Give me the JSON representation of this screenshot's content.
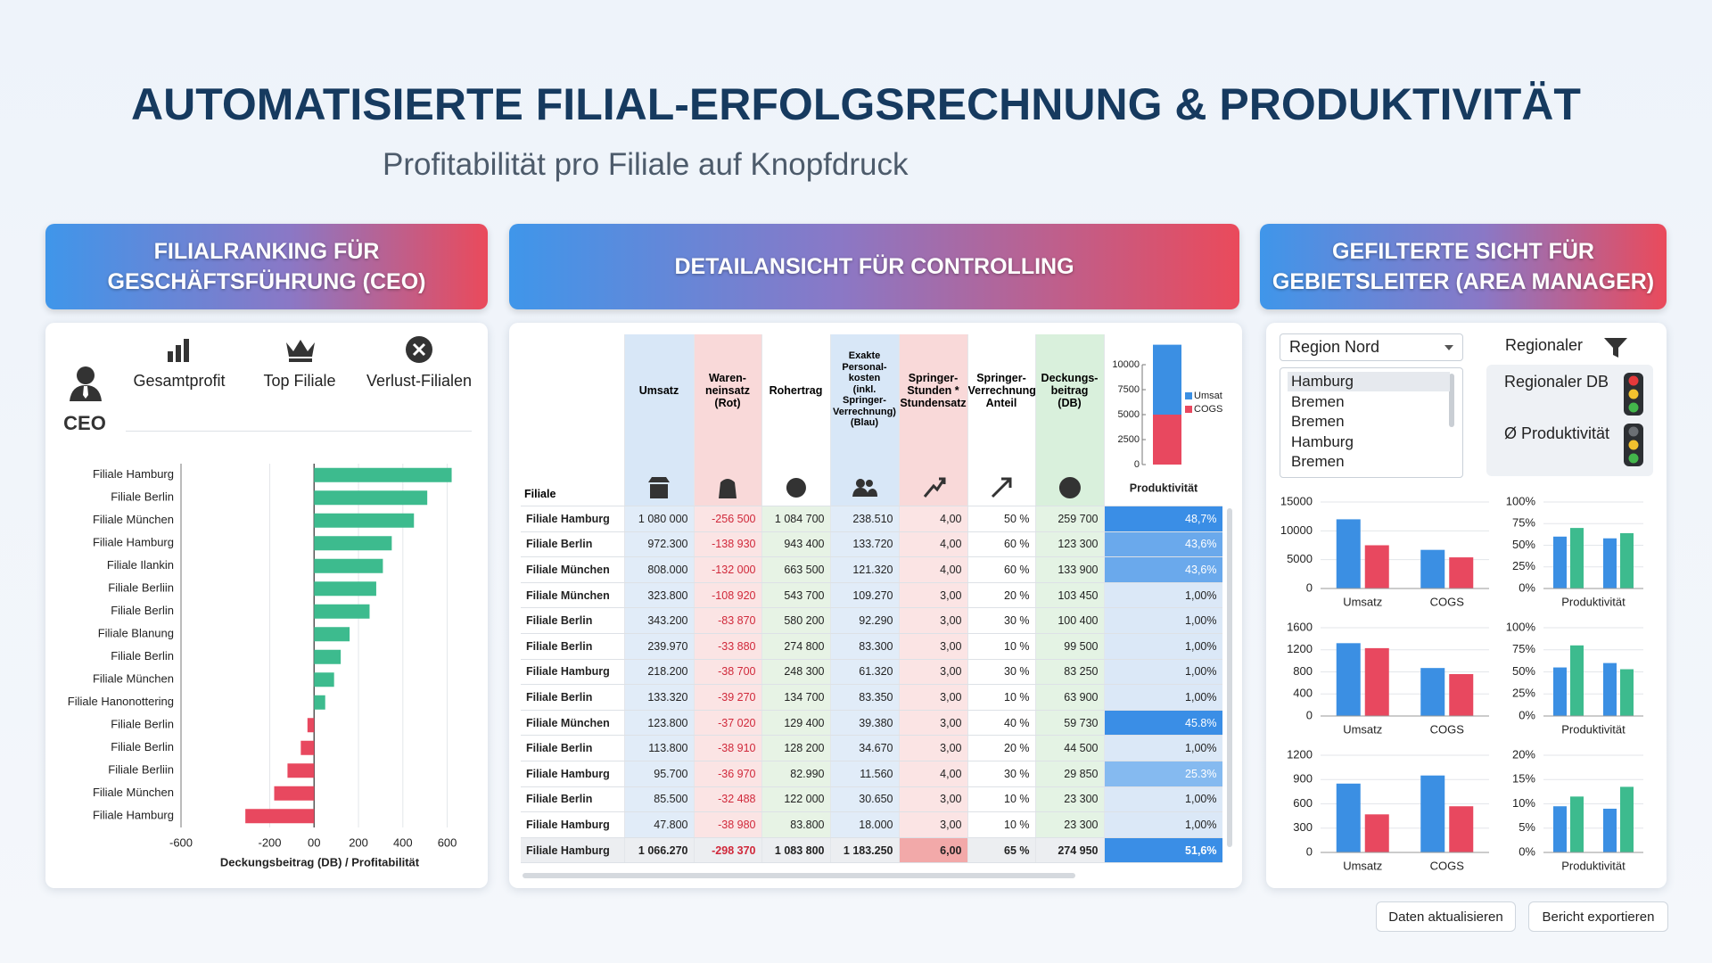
{
  "header": {
    "title": "AUTOMATISIERTE FILIAL-ERFOLGSRECHNUNG & PRODUKTIVITÄT",
    "subtitle": "Profitabilität pro Filiale auf Knopfdruck"
  },
  "panels": [
    {
      "title": "FILIALRANKING FÜR\nGESCHÄFTSFÜHRUNG (CEO)"
    },
    {
      "title": "DETAILANSICHT FÜR CONTROLLING"
    },
    {
      "title": "GEFILTERTE SICHT FÜR\nGEBIETSLEITER (AREA MANAGER)"
    }
  ],
  "ceo": {
    "role": "CEO",
    "tabs": [
      "Gesamtprofit",
      "Top Filiale",
      "Verlust-Filialen"
    ],
    "chart": {
      "type": "bar",
      "orientation": "horizontal",
      "categories": [
        "Filiale Hamburg",
        "Filiale Berlin",
        "Filiale München",
        "Filiale Hamburg",
        "Filiale Ilankin",
        "Filiale Berliin",
        "Filiale Berlin",
        "Filiale Blanung",
        "Filiale Berlin",
        "Filiale München",
        "Filiale Hanonottering",
        "Filiale Berlin",
        "Filiale Berlin",
        "Filiale Berliin",
        "Filiale München",
        "Filiale Hamburg"
      ],
      "values": [
        620,
        510,
        450,
        350,
        310,
        280,
        250,
        160,
        120,
        90,
        50,
        -30,
        -60,
        -120,
        -180,
        -310
      ],
      "colors": {
        "positive": "#3dbb8e",
        "negative": "#e8485f"
      },
      "xlim": [
        -600,
        650
      ],
      "xticks": [
        -600,
        -200,
        {
          "value": 0,
          "label": "00"
        },
        200,
        400,
        600
      ],
      "x_label": "Deckungsbeitrag (DB) / Profitabilität",
      "grid": true
    }
  },
  "controlling": {
    "table": {
      "columns": [
        "Filiale",
        "Umsatz",
        "Waren-\nneinsatz\n(Rot)",
        "Rohertrag",
        "Exakte\nPersonal-\nkosten\n(inkl. Springer-\nVerrechnung)\n(Blau)",
        "Springer-\nStunden *\nStundensatz",
        "Springer-\nVerrechnung\nAnteil",
        "Deckungs-\nbeitrag\n(DB)",
        "Produktivität"
      ],
      "rows": [
        [
          "Filiale Hamburg",
          "1 080 000",
          "-256 500",
          "1 084 700",
          "238.510",
          "4,00",
          "50 %",
          "259 700",
          "48,7%"
        ],
        [
          "Filiale Berlin",
          "972.300",
          "-138 930",
          "943 400",
          "133.720",
          "4,00",
          "60 %",
          "123 300",
          "43,6%"
        ],
        [
          "Filiale München",
          "808.000",
          "-132 000",
          "663 500",
          "121.320",
          "4,00",
          "60 %",
          "133 900",
          "43,6%"
        ],
        [
          "Filiale München",
          "323.800",
          "-108 920",
          "543 700",
          "109.270",
          "3,00",
          "20 %",
          "103 450",
          "1,00%"
        ],
        [
          "Filiale Berlin",
          "343.200",
          "-83 870",
          "580 200",
          "92.290",
          "3,00",
          "30 %",
          "100 400",
          "1,00%"
        ],
        [
          "Filiale Berlin",
          "239.970",
          "-33 880",
          "274 800",
          "83.300",
          "3,00",
          "10 %",
          "99 500",
          "1,00%"
        ],
        [
          "Filiale Hamburg",
          "218.200",
          "-38 700",
          "248 300",
          "61.320",
          "3,00",
          "30 %",
          "83 250",
          "1,00%"
        ],
        [
          "Filiale Berlin",
          "133.320",
          "-39 270",
          "134 700",
          "83.350",
          "3,00",
          "10 %",
          "63 900",
          "1,00%"
        ],
        [
          "Filiale München",
          "123.800",
          "-37 020",
          "129 400",
          "39.380",
          "3,00",
          "40 %",
          "59 730",
          "45.8%"
        ],
        [
          "Filiale Berlin",
          "113.800",
          "-38 910",
          "128 200",
          "34.670",
          "3,00",
          "20 %",
          "44 500",
          "1,00%"
        ],
        [
          "Filiale Hamburg",
          "95.700",
          "-36 970",
          "82.990",
          "11.560",
          "4,00",
          "30 %",
          "29 850",
          "25.3%"
        ],
        [
          "Filiale Berlin",
          "85.500",
          "-32 488",
          "122 000",
          "30.650",
          "3,00",
          "10 %",
          "23 300",
          "1,00%"
        ],
        [
          "Filiale Hamburg",
          "47.800",
          "-38 980",
          "83.800",
          "18.000",
          "3,00",
          "10 %",
          "23 300",
          "1,00%"
        ],
        [
          "Filiale Hamburg",
          "1 066.270",
          "-298 370",
          "1 083 800",
          "1 183.250",
          "6,00",
          "65 %",
          "274 950",
          "51,6%"
        ]
      ]
    },
    "chart": {
      "type": "stacked_bar",
      "series": [
        {
          "name": "Umsatz",
          "color": "#3b8fe3",
          "values": [
            7000
          ]
        },
        {
          "name": "COGS",
          "color": "#e8485f",
          "values": [
            5000
          ]
        }
      ],
      "ylim": [
        0,
        12000
      ],
      "yticks": [
        0,
        2500,
        5000,
        7500,
        10000
      ]
    }
  },
  "area": {
    "dropdown": "Region Nord",
    "filter_label": "Regionaler",
    "list": [
      "Hamburg",
      "Bremen",
      "Bremen",
      "Hamburg",
      "Bremen"
    ],
    "kpis": [
      "Regionaler DB",
      "Ø Produktivität"
    ],
    "charts": [
      {
        "type": "bar",
        "categories": [
          "Umsatz",
          "COGS"
        ],
        "series": [
          {
            "color": "#3b8fe3",
            "values": [
              12000,
              6700
            ]
          },
          {
            "color": "#e8485f",
            "values": [
              7500,
              5400
            ]
          }
        ],
        "ylim": [
          0,
          15000
        ],
        "yticks": [
          0,
          5000,
          10000,
          15000
        ]
      },
      {
        "type": "bar",
        "categories": [
          null,
          null
        ],
        "x_label": "Produktivität",
        "series": [
          {
            "color": "#3b8fe3",
            "values": [
              60,
              58
            ]
          },
          {
            "color": "#3dbb8e",
            "values": [
              70,
              64
            ]
          }
        ],
        "ylim": [
          0,
          100
        ],
        "yticks": [
          {
            "value": 0,
            "label": "0%"
          },
          {
            "value": 25,
            "label": "25%"
          },
          {
            "value": 50,
            "label": "50%"
          },
          {
            "value": 75,
            "label": "75%"
          },
          {
            "value": 100,
            "label": "100%"
          }
        ]
      },
      {
        "type": "bar",
        "categories": [
          "Umsatz",
          "COGS"
        ],
        "series": [
          {
            "color": "#3b8fe3",
            "values": [
              1320,
              870
            ]
          },
          {
            "color": "#e8485f",
            "values": [
              1230,
              760
            ]
          }
        ],
        "ylim": [
          0,
          1600
        ],
        "yticks": [
          0,
          400,
          800,
          1200,
          1600
        ]
      },
      {
        "type": "bar",
        "categories": [
          null,
          null
        ],
        "x_label": "Produktivität",
        "series": [
          {
            "color": "#3b8fe3",
            "values": [
              55,
              60
            ]
          },
          {
            "color": "#3dbb8e",
            "values": [
              80,
              53
            ]
          }
        ],
        "ylim": [
          0,
          100
        ],
        "yticks": [
          {
            "value": 0,
            "label": "0%"
          },
          {
            "value": 25,
            "label": "25%"
          },
          {
            "value": 50,
            "label": "50%"
          },
          {
            "value": 75,
            "label": "75%"
          },
          {
            "value": 100,
            "label": "100%"
          }
        ]
      },
      {
        "type": "bar",
        "categories": [
          "Umsatz",
          "COGS"
        ],
        "series": [
          {
            "color": "#3b8fe3",
            "values": [
              850,
              950
            ]
          },
          {
            "color": "#e8485f",
            "values": [
              470,
              570
            ]
          }
        ],
        "ylim": [
          0,
          1200
        ],
        "yticks": [
          0,
          300,
          600,
          900,
          1200
        ]
      },
      {
        "type": "bar",
        "categories": [
          null,
          null
        ],
        "x_label": "Produktivität",
        "series": [
          {
            "color": "#3b8fe3",
            "values": [
              9.5,
              9
            ]
          },
          {
            "color": "#3dbb8e",
            "values": [
              11.5,
              13.5
            ]
          }
        ],
        "ylim": [
          0,
          20
        ],
        "yticks": [
          {
            "value": 0,
            "label": "0%"
          },
          {
            "value": 5,
            "label": "5%"
          },
          {
            "value": 10,
            "label": "10%"
          },
          {
            "value": 15,
            "label": "15%"
          },
          {
            "value": 20,
            "label": "20%"
          }
        ]
      }
    ]
  },
  "buttons": [
    "Daten aktualisieren",
    "Bericht exportieren"
  ]
}
